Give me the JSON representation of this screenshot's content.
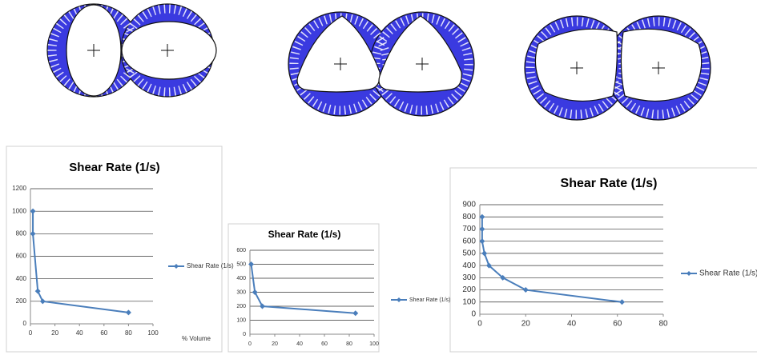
{
  "chart_data": [
    {
      "type": "line",
      "title": "Shear Rate (1/s)",
      "x_label": "% Volume",
      "x": [
        2,
        2,
        6,
        10,
        80
      ],
      "series": [
        {
          "name": "Shear Rate (1/s)",
          "color": "#4a7ebb",
          "values": [
            1000,
            800,
            290,
            200,
            100
          ]
        }
      ],
      "xlim": [
        0,
        100
      ],
      "ylim": [
        0,
        1200
      ],
      "xticks": [
        0,
        20,
        40,
        60,
        80,
        100
      ],
      "yticks": [
        0,
        200,
        400,
        600,
        800,
        1000,
        1200
      ],
      "grid": true,
      "legend": "right"
    },
    {
      "type": "line",
      "title": "Shear Rate (1/s)",
      "x": [
        1,
        4,
        10,
        85
      ],
      "series": [
        {
          "name": "Shear Rate (1/s)",
          "color": "#4a7ebb",
          "values": [
            500,
            300,
            200,
            150
          ]
        }
      ],
      "xlim": [
        0,
        100
      ],
      "ylim": [
        0,
        600
      ],
      "xticks": [
        0,
        20,
        40,
        60,
        80,
        100
      ],
      "yticks": [
        0,
        100,
        200,
        300,
        400,
        500,
        600
      ],
      "grid": true,
      "legend": "right"
    },
    {
      "type": "line",
      "title": "Shear Rate (1/s)",
      "x": [
        1,
        1,
        1,
        2,
        4,
        10,
        20,
        62
      ],
      "series": [
        {
          "name": "Shear Rate (1/s)",
          "color": "#4a7ebb",
          "values": [
            800,
            700,
            600,
            500,
            400,
            300,
            200,
            100
          ]
        }
      ],
      "xlim": [
        0,
        80
      ],
      "ylim": [
        0,
        900
      ],
      "xticks": [
        0,
        20,
        40,
        60,
        80
      ],
      "yticks": [
        0,
        100,
        200,
        300,
        400,
        500,
        600,
        700,
        800,
        900
      ],
      "grid": true,
      "legend": "right"
    }
  ]
}
